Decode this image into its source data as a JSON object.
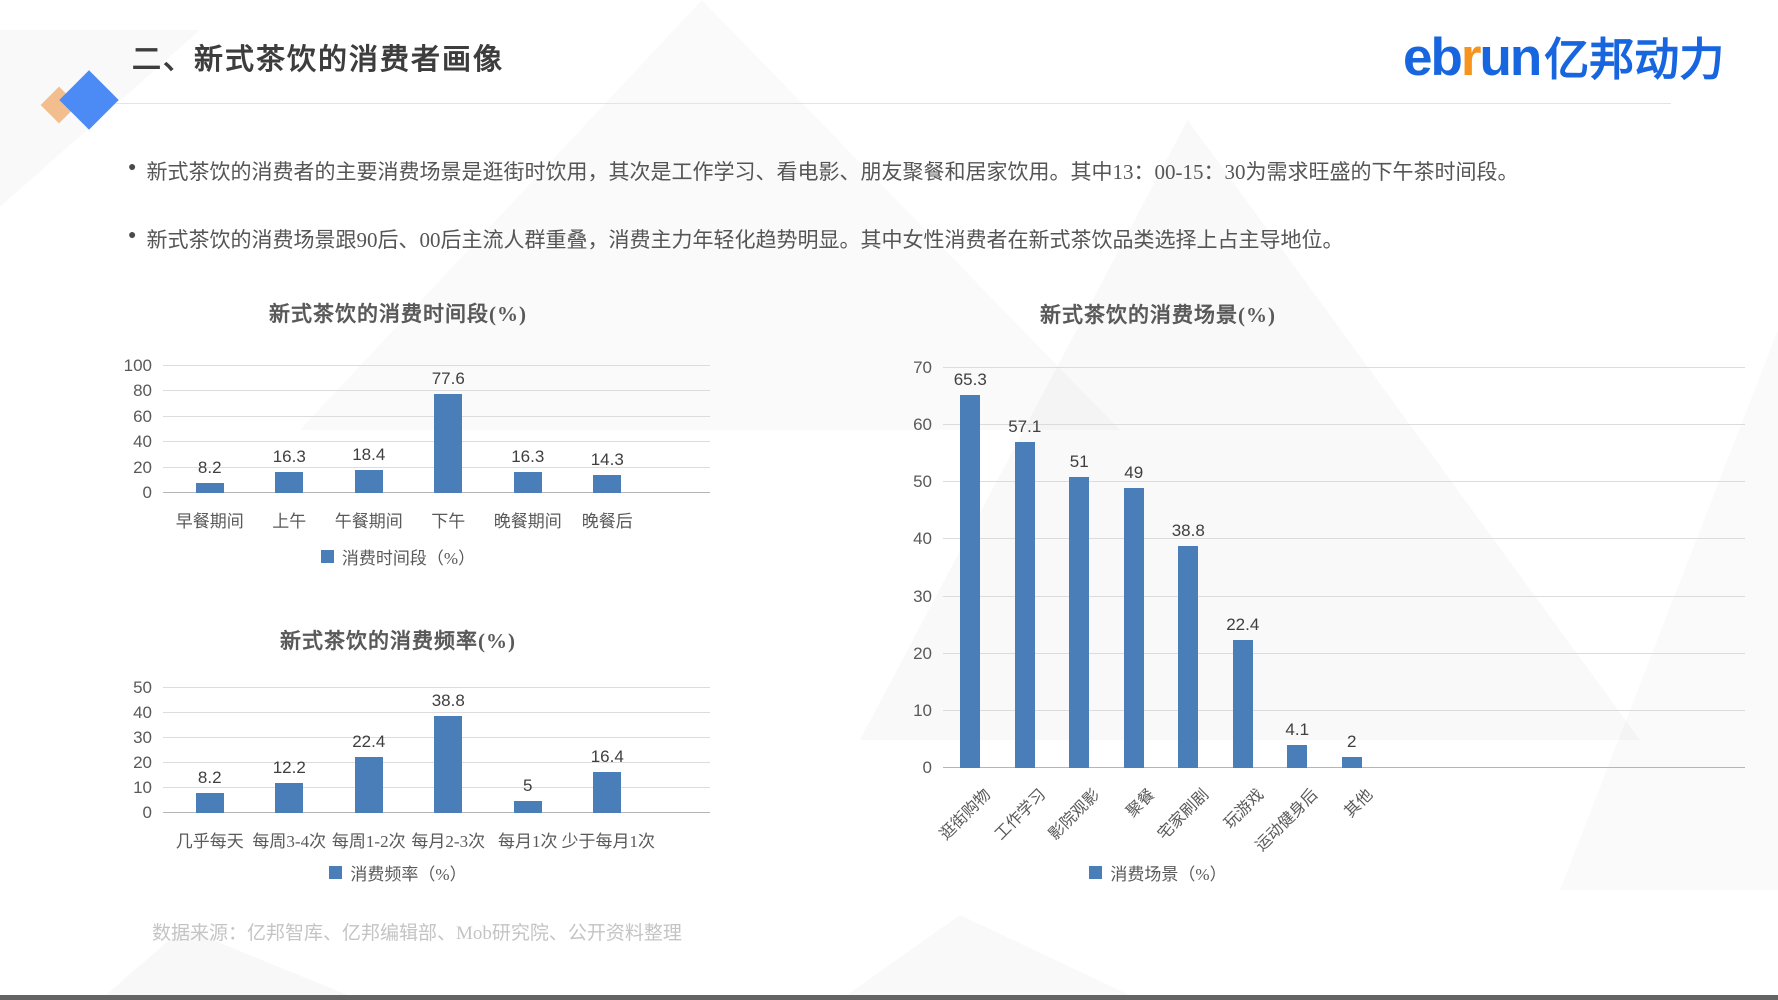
{
  "header": {
    "title": "二、新式茶饮的消费者画像",
    "logo": {
      "eb": "eb",
      "r": "r",
      "un": "un",
      "cn": "亿邦动力"
    }
  },
  "bullets": [
    "新式茶饮的消费者的主要消费场景是逛街时饮用，其次是工作学习、看电影、朋友聚餐和居家饮用。其中13：00-15：30为需求旺盛的下午茶时间段。",
    "新式茶饮的消费场景跟90后、00后主流人群重叠，消费主力年轻化趋势明显。其中女性消费者在新式茶饮品类选择上占主导地位。"
  ],
  "colors": {
    "bar_fill": "#4A7EB9",
    "logo_blue": "#1766E0",
    "logo_orange": "#F7941E",
    "diamond_orange": "#F2BE8D",
    "diamond_blue": "#4C8BF5"
  },
  "chart_data": [
    {
      "type": "bar",
      "title": "新式茶饮的消费时间段(%)",
      "categories": [
        "早餐期间",
        "上午",
        "午餐期间",
        "下午",
        "晚餐期间",
        "晚餐后"
      ],
      "values": [
        8.2,
        16.3,
        18.4,
        77.6,
        16.3,
        14.3
      ],
      "legend": "消费时间段（%）",
      "legend_position": "bottom",
      "xlabel": "",
      "ylabel": "",
      "ylim": [
        0,
        100
      ],
      "yticks": [
        0,
        20,
        40,
        60,
        80,
        100
      ],
      "grid": true
    },
    {
      "type": "bar",
      "title": "新式茶饮的消费频率(%)",
      "categories": [
        "几乎每天",
        "每周3-4次",
        "每周1-2次",
        "每月2-3次",
        "每月1次",
        "少于每月1次"
      ],
      "values": [
        8.2,
        12.2,
        22.4,
        38.8,
        5,
        16.4
      ],
      "legend": "消费频率（%）",
      "legend_position": "bottom",
      "xlabel": "",
      "ylabel": "",
      "ylim": [
        0,
        50
      ],
      "yticks": [
        0,
        10,
        20,
        30,
        40,
        50
      ],
      "grid": true
    },
    {
      "type": "bar",
      "title": "新式茶饮的消费场景(%)",
      "categories": [
        "逛街购物",
        "工作学习",
        "影院观影",
        "聚餐",
        "宅家刷剧",
        "玩游戏",
        "运动健身后",
        "其他"
      ],
      "values": [
        65.3,
        57.1,
        51,
        49,
        38.8,
        22.4,
        4.1,
        2
      ],
      "legend": "消费场景（%）",
      "legend_position": "bottom",
      "xlabel": "",
      "ylabel": "",
      "ylim": [
        0,
        70
      ],
      "yticks": [
        0,
        10,
        20,
        30,
        40,
        50,
        60,
        70
      ],
      "grid": true,
      "xlabel_rotation": -45
    }
  ],
  "footer": {
    "source": "数据来源：亿邦智库、亿邦编辑部、Mob研究院、公开资料整理"
  }
}
